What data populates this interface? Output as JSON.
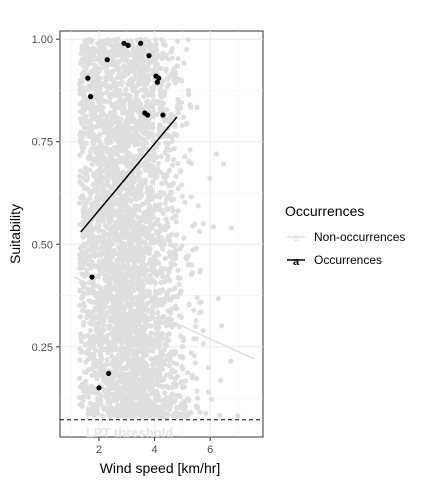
{
  "chart_data": {
    "type": "scatter",
    "xlabel": "Wind speed [km/hr]",
    "ylabel": "Suitability",
    "xlim": [
      0.6,
      7.9
    ],
    "ylim": [
      0.03,
      1.02
    ],
    "x_ticks": [
      2,
      4,
      6
    ],
    "y_ticks": [
      0.25,
      0.5,
      0.75,
      1.0
    ],
    "x_tick_labels": [
      "2",
      "4",
      "6"
    ],
    "y_tick_labels": [
      "0.25",
      "0.50",
      "0.75",
      "1.00"
    ],
    "grid": true,
    "legend": {
      "title": "Occurrences",
      "placement": "right",
      "entries": [
        {
          "label": "Non-occurrences",
          "color": "#dedede"
        },
        {
          "label": "Occurrences",
          "color": "#000000"
        }
      ]
    },
    "threshold": {
      "label": "LPT threshold",
      "y": 0.072
    },
    "series": [
      {
        "name": "Non-occurrences",
        "color": "#dedede",
        "cloud": {
          "x_center": 3.0,
          "x_spread": 1.05,
          "x_min": 1.3,
          "x_max": 7.6,
          "y_min": 0.08,
          "y_max": 1.0
        },
        "trend": {
          "x": [
            1.1,
            7.6
          ],
          "y": [
            0.42,
            0.22
          ]
        }
      },
      {
        "name": "Occurrences",
        "color": "#000000",
        "points": [
          {
            "x": 2.9,
            "y": 0.99
          },
          {
            "x": 3.05,
            "y": 0.985
          },
          {
            "x": 3.5,
            "y": 0.99
          },
          {
            "x": 3.8,
            "y": 0.96
          },
          {
            "x": 2.3,
            "y": 0.95
          },
          {
            "x": 4.05,
            "y": 0.91
          },
          {
            "x": 4.15,
            "y": 0.905
          },
          {
            "x": 4.1,
            "y": 0.895
          },
          {
            "x": 1.6,
            "y": 0.905
          },
          {
            "x": 1.7,
            "y": 0.86
          },
          {
            "x": 3.65,
            "y": 0.82
          },
          {
            "x": 3.75,
            "y": 0.815
          },
          {
            "x": 4.3,
            "y": 0.815
          },
          {
            "x": 1.75,
            "y": 0.42
          },
          {
            "x": 2.35,
            "y": 0.185
          },
          {
            "x": 2.0,
            "y": 0.15
          }
        ],
        "trend": {
          "x": [
            1.35,
            4.8
          ],
          "y": [
            0.53,
            0.81
          ]
        }
      }
    ]
  }
}
